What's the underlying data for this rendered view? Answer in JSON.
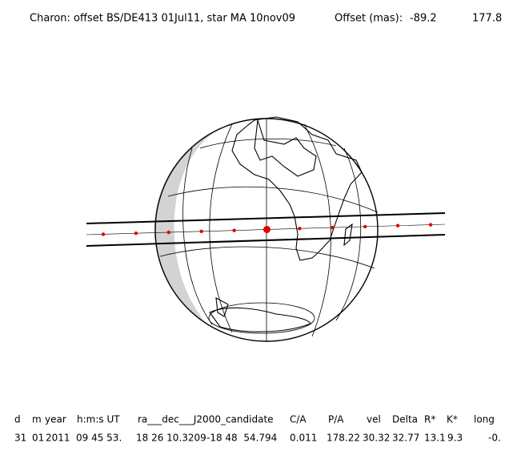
{
  "header": {
    "title": "Charon: offset BS/DE413 01Jul11, star MA 10nov09",
    "offset_label": "Offset (mas):",
    "offset_x": "-89.2",
    "offset_y": "177.8"
  },
  "table": {
    "columns": [
      "d",
      "m",
      "year",
      "h:m:s UT",
      "ra___dec___J2000_candidate",
      "C/A",
      "P/A",
      "vel",
      "Delta",
      "R*",
      "K*",
      "long"
    ],
    "rows": [
      [
        "31",
        "01",
        "2011",
        "09 45 53.",
        "18 26 10.3209",
        "-18 48  54.794",
        "0.011",
        "178.22",
        "30.32",
        "32.77",
        "13.1",
        "9.3",
        "-0."
      ]
    ]
  }
}
